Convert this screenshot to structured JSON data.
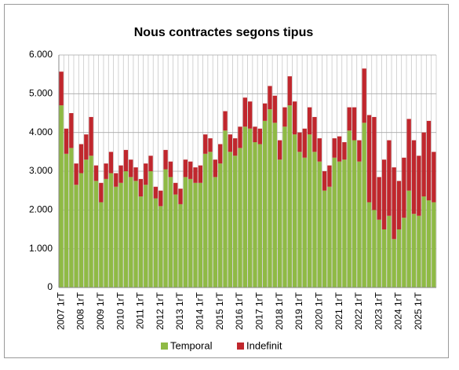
{
  "chart_data": {
    "type": "stacked-bar",
    "title": "Nous contractes segons tipus",
    "categories": [
      "2007 1rT",
      null,
      null,
      null,
      "2008 1rT",
      null,
      null,
      null,
      "2009 1rT",
      null,
      null,
      null,
      "2010 1rT",
      null,
      null,
      null,
      "2011 1rT",
      null,
      null,
      null,
      "2012 1rT",
      null,
      null,
      null,
      "2013 1rT",
      null,
      null,
      null,
      "2014 1rT",
      null,
      null,
      null,
      "2015 1rT",
      null,
      null,
      null,
      "2016 1rT",
      null,
      null,
      null,
      "2017 1rT",
      null,
      null,
      null,
      "2018 1rT",
      null,
      null,
      null,
      "2019 1rT",
      null,
      null,
      null,
      "2020 1rT",
      null,
      null,
      null,
      "2021 1rT",
      null,
      null,
      null,
      "2022 1rT",
      null,
      null,
      null,
      "2023 1rT",
      null,
      null,
      null,
      "2024 1rT",
      null,
      null,
      null,
      "2025 1rT",
      null,
      null,
      null
    ],
    "series": [
      {
        "name": "Temporal",
        "color": "#8fba45",
        "values": [
          4700,
          3450,
          3600,
          2650,
          2950,
          3300,
          3400,
          2750,
          2200,
          2800,
          2950,
          2600,
          2700,
          3000,
          2850,
          2750,
          2350,
          2650,
          3000,
          2300,
          2100,
          3050,
          2850,
          2400,
          2150,
          2850,
          2800,
          2700,
          2700,
          3450,
          3500,
          2850,
          3200,
          4050,
          3500,
          3400,
          3600,
          4150,
          4100,
          3750,
          3700,
          4300,
          4600,
          4250,
          3300,
          4150,
          4700,
          3950,
          3500,
          3350,
          3950,
          3500,
          3250,
          2500,
          2600,
          3350,
          3250,
          3300,
          4050,
          3800,
          3250,
          4250,
          2200,
          2000,
          1750,
          1500,
          1850,
          1250,
          1500,
          1800,
          2500,
          1900,
          1850,
          2350,
          2250,
          2200
        ]
      },
      {
        "name": "Indefinit",
        "color": "#c0272d",
        "values": [
          870,
          650,
          900,
          550,
          750,
          650,
          1000,
          400,
          500,
          400,
          550,
          350,
          450,
          550,
          450,
          350,
          450,
          550,
          400,
          300,
          400,
          500,
          400,
          300,
          400,
          450,
          450,
          400,
          450,
          500,
          350,
          450,
          500,
          500,
          450,
          450,
          550,
          750,
          700,
          400,
          400,
          450,
          600,
          700,
          500,
          500,
          750,
          850,
          500,
          750,
          700,
          900,
          600,
          500,
          550,
          500,
          650,
          450,
          600,
          850,
          550,
          1400,
          2250,
          2400,
          1100,
          1800,
          1950,
          1850,
          1250,
          1550,
          1850,
          1900,
          1550,
          1650,
          2050,
          1300
        ]
      }
    ],
    "ylim": [
      0,
      6000
    ],
    "yticks": [
      0,
      {
        "value": 1000,
        "label": "1.000"
      },
      {
        "value": 2000,
        "label": "2.000"
      },
      {
        "value": 3000,
        "label": "3.000"
      },
      {
        "value": 4000,
        "label": "4.000"
      },
      {
        "value": 5000,
        "label": "5.000"
      },
      {
        "value": 6000,
        "label": "6.000"
      }
    ],
    "grid": true,
    "legend": "bottom"
  }
}
